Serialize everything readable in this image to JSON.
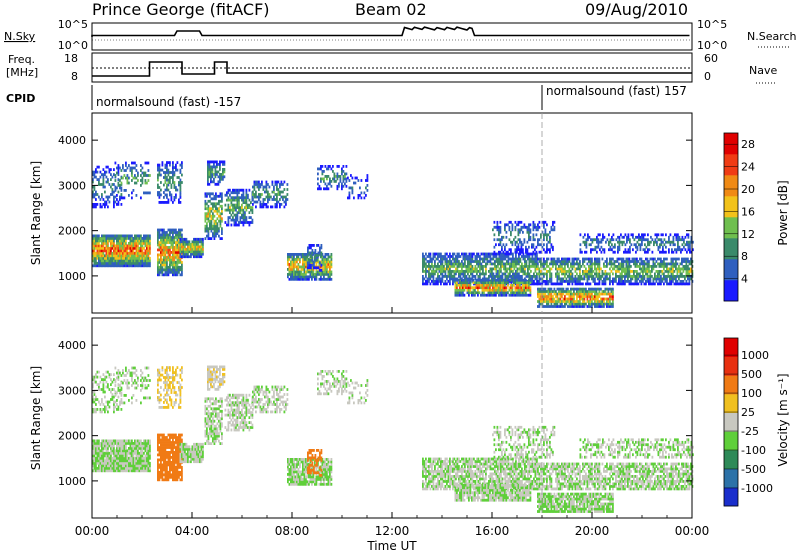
{
  "header": {
    "title": "Prince George (fitACF)",
    "beam": "Beam 02",
    "date": "09/Aug/2010"
  },
  "noise_panel": {
    "left_label": "N.Sky",
    "left_ticks": [
      "10^5",
      "10^0"
    ],
    "right_ticks": [
      "10^5",
      "10^0"
    ],
    "right_label": "N.Search"
  },
  "freq_panel": {
    "label_line1": "Freq.",
    "label_line2": "[MHz]",
    "left_ticks": [
      "18",
      "8"
    ],
    "right_ticks": [
      "60",
      "0"
    ],
    "right_label": "Nave"
  },
  "cpid_panel": {
    "label": "CPID",
    "segments": [
      {
        "text": "normalsound (fast) -157",
        "start_hour": 0
      },
      {
        "text": "normalsound (fast) 157",
        "start_hour": 18
      }
    ]
  },
  "chart_data": [
    {
      "type": "heatmap",
      "name": "power",
      "ylabel": "Slant Range [km]",
      "yticks": [
        "1000",
        "2000",
        "3000",
        "4000"
      ],
      "ylim": [
        180,
        4600
      ],
      "xlim": [
        0,
        24
      ],
      "colorbar": {
        "label": "Power [dB]",
        "ticks": [
          "4",
          "8",
          "12",
          "16",
          "20",
          "24",
          "28"
        ],
        "range": [
          0,
          30
        ],
        "colors": [
          "#1a1aff",
          "#2f5fbf",
          "#3a8a6a",
          "#6fbf4f",
          "#f2c21a",
          "#f08a14",
          "#f03c14",
          "#e00000"
        ]
      }
    },
    {
      "type": "heatmap",
      "name": "velocity",
      "ylabel": "Slant Range [km]",
      "yticks": [
        "1000",
        "2000",
        "3000",
        "4000"
      ],
      "ylim": [
        180,
        4600
      ],
      "xlim": [
        0,
        24
      ],
      "xlabel": "Time UT",
      "xticks": [
        "00:00",
        "04:00",
        "08:00",
        "12:00",
        "16:00",
        "20:00",
        "00:00"
      ],
      "colorbar": {
        "label": "Velocity [m s⁻¹]",
        "ticks": [
          "1000",
          "500",
          "100",
          "25",
          "-25",
          "-100",
          "-500",
          "-1000"
        ],
        "colors": [
          "#1a2ecc",
          "#2c72a8",
          "#2e8a58",
          "#5fcf3a",
          "#c8c8c0",
          "#f0c020",
          "#f07a14",
          "#e83010",
          "#e00000"
        ]
      }
    }
  ]
}
